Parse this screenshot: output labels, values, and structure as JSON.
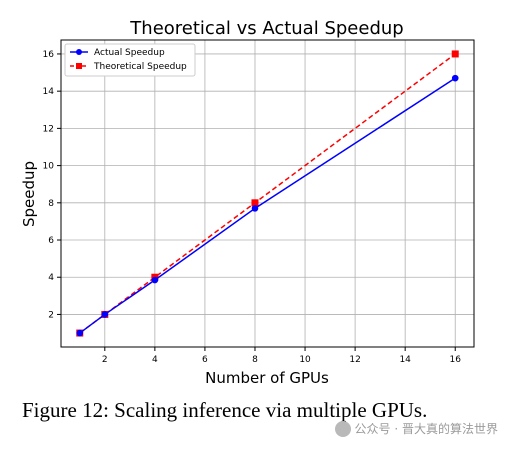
{
  "chart_data": {
    "type": "line",
    "title": "Theoretical vs Actual Speedup",
    "xlabel": "Number of GPUs",
    "ylabel": "Speedup",
    "x": [
      1,
      2,
      4,
      8,
      16
    ],
    "xticks": [
      "2",
      "4",
      "6",
      "8",
      "10",
      "12",
      "14",
      "16"
    ],
    "yticks": [
      "2",
      "4",
      "6",
      "8",
      "10",
      "12",
      "14",
      "16"
    ],
    "xlim": [
      0.25,
      16.75
    ],
    "ylim": [
      0.25,
      16.75
    ],
    "grid": true,
    "legend_position": "top-left",
    "series": [
      {
        "name": "Actual Speedup",
        "values": [
          1,
          2,
          3.85,
          7.7,
          14.7
        ],
        "color": "#0000ff",
        "style": "solid",
        "marker": "circle"
      },
      {
        "name": "Theoretical Speedup",
        "values": [
          1,
          2,
          4,
          8,
          16
        ],
        "color": "#ff0000",
        "style": "dashed",
        "marker": "square"
      }
    ]
  },
  "caption": "Figure 12: Scaling inference via multiple GPUs.",
  "watermark": "公众号 · 晋大真的算法世界"
}
